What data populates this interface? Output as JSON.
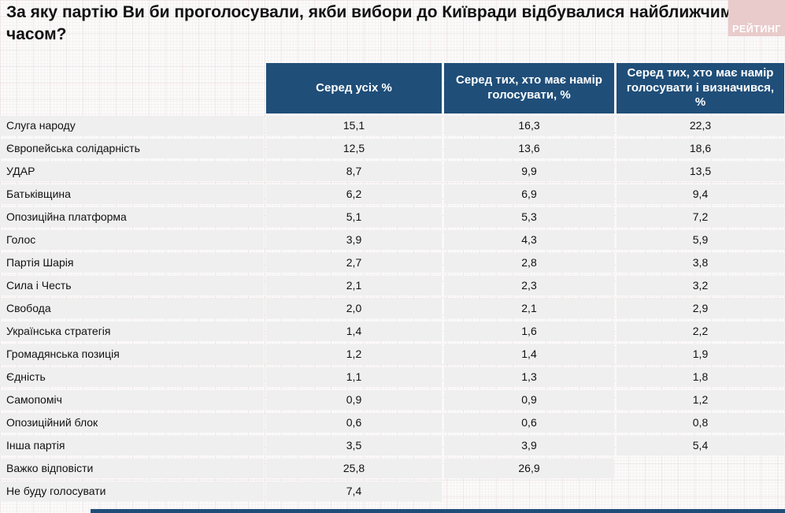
{
  "title": "За яку партію Ви би проголосували, якби вибори до Київради відбувалися найближчим часом?",
  "logo": {
    "text": "РЕЙТИНГ"
  },
  "colors": {
    "header_bg": "#1f4e79",
    "row_bg": "#efefef",
    "logo_bg": "#e9cbcb",
    "footer_bar": "#1f4e79",
    "page_bg": "#fbfafa"
  },
  "chart_data": {
    "type": "table",
    "title": "За яку партію Ви би проголосували, якби вибори до Київради відбувалися найближчим часом?",
    "columns": [
      "Серед усіх %",
      "Серед тих, хто має намір голосувати, %",
      "Серед тих, хто має намір голосувати і визначився, %"
    ],
    "rows": [
      {
        "party": "Слуга народу",
        "values": [
          "15,1",
          "16,3",
          "22,3"
        ]
      },
      {
        "party": "Європейська солідарність",
        "values": [
          "12,5",
          "13,6",
          "18,6"
        ]
      },
      {
        "party": "УДАР",
        "values": [
          "8,7",
          "9,9",
          "13,5"
        ]
      },
      {
        "party": "Батьківщина",
        "values": [
          "6,2",
          "6,9",
          "9,4"
        ]
      },
      {
        "party": "Опозиційна платформа",
        "values": [
          "5,1",
          "5,3",
          "7,2"
        ]
      },
      {
        "party": "Голос",
        "values": [
          "3,9",
          "4,3",
          "5,9"
        ]
      },
      {
        "party": "Партія Шарія",
        "values": [
          "2,7",
          "2,8",
          "3,8"
        ]
      },
      {
        "party": "Сила і Честь",
        "values": [
          "2,1",
          "2,3",
          "3,2"
        ]
      },
      {
        "party": "Свобода",
        "values": [
          "2,0",
          "2,1",
          "2,9"
        ]
      },
      {
        "party": "Українська стратегія",
        "values": [
          "1,4",
          "1,6",
          "2,2"
        ]
      },
      {
        "party": "Громадянська позиція",
        "values": [
          "1,2",
          "1,4",
          "1,9"
        ]
      },
      {
        "party": "Єдність",
        "values": [
          "1,1",
          "1,3",
          "1,8"
        ]
      },
      {
        "party": "Самопоміч",
        "values": [
          "0,9",
          "0,9",
          "1,2"
        ]
      },
      {
        "party": "Опозиційний блок",
        "values": [
          "0,6",
          "0,6",
          "0,8"
        ]
      },
      {
        "party": "Інша партія",
        "values": [
          "3,5",
          "3,9",
          "5,4"
        ]
      },
      {
        "party": "Важко відповісти",
        "values": [
          "25,8",
          "26,9",
          null
        ]
      },
      {
        "party": "Не буду голосувати",
        "values": [
          "7,4",
          null,
          null
        ]
      }
    ]
  }
}
